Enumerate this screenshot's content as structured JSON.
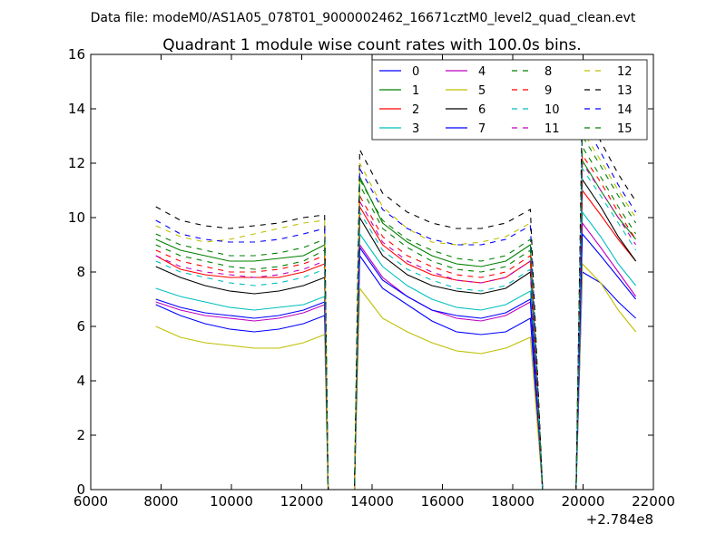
{
  "chart_data": {
    "type": "line",
    "suptitle": "Data file: modeM0/AS1A05_078T01_9000002462_16671cztM0_level2_quad_clean.evt",
    "title": "Quadrant 1 module wise count rates with 100.0s bins.",
    "xlabel": "",
    "ylabel": "",
    "x_offset_label": "+2.784e8",
    "xlim": [
      6000,
      22000
    ],
    "ylim": [
      0,
      16
    ],
    "xticks": [
      6000,
      8000,
      10000,
      12000,
      14000,
      16000,
      18000,
      20000,
      22000
    ],
    "yticks": [
      0,
      2,
      4,
      6,
      8,
      10,
      12,
      14,
      16
    ],
    "grid": false,
    "legend_position": "top-right",
    "x": [
      7850,
      8550,
      9250,
      9950,
      10650,
      11350,
      12050,
      12650,
      12750,
      13500,
      13650,
      14300,
      15000,
      15700,
      16400,
      17100,
      17800,
      18500,
      18850,
      18950,
      19800,
      19980,
      20500,
      21000,
      21500
    ],
    "series": [
      {
        "name": "0",
        "color": "#0000ff",
        "dash": "solid",
        "values": [
          6.8,
          6.4,
          6.1,
          5.9,
          5.8,
          5.9,
          6.1,
          6.4,
          0,
          0,
          8.6,
          7.4,
          6.8,
          6.2,
          5.8,
          5.7,
          5.8,
          6.3,
          0,
          0,
          0,
          8.0,
          7.6,
          6.9,
          6.3
        ]
      },
      {
        "name": "1",
        "color": "#008000",
        "dash": "solid",
        "values": [
          9.2,
          8.8,
          8.6,
          8.4,
          8.4,
          8.5,
          8.6,
          9.0,
          0,
          0,
          11.5,
          9.8,
          9.1,
          8.6,
          8.3,
          8.2,
          8.4,
          9.0,
          0,
          0,
          0,
          12.1,
          11.0,
          10.0,
          9.2
        ]
      },
      {
        "name": "2",
        "color": "#ff0000",
        "dash": "solid",
        "values": [
          8.6,
          8.1,
          7.9,
          7.8,
          7.8,
          7.8,
          8.0,
          8.3,
          0,
          0,
          10.4,
          9.0,
          8.3,
          7.9,
          7.7,
          7.6,
          7.8,
          8.4,
          0,
          0,
          0,
          11.0,
          10.1,
          9.2,
          8.4
        ]
      },
      {
        "name": "3",
        "color": "#00bfbf",
        "dash": "solid",
        "values": [
          7.4,
          7.1,
          6.9,
          6.7,
          6.6,
          6.7,
          6.8,
          7.1,
          0,
          0,
          9.4,
          8.2,
          7.5,
          7.0,
          6.7,
          6.6,
          6.8,
          7.3,
          0,
          0,
          0,
          10.2,
          9.3,
          8.3,
          7.5
        ]
      },
      {
        "name": "4",
        "color": "#bf00bf",
        "dash": "solid",
        "values": [
          6.9,
          6.6,
          6.4,
          6.3,
          6.2,
          6.3,
          6.5,
          6.8,
          0,
          0,
          9.0,
          7.8,
          7.1,
          6.6,
          6.3,
          6.2,
          6.4,
          6.9,
          0,
          0,
          0,
          9.8,
          8.9,
          8.0,
          7.1
        ]
      },
      {
        "name": "5",
        "color": "#bfbf00",
        "dash": "solid",
        "values": [
          6.0,
          5.6,
          5.4,
          5.3,
          5.2,
          5.2,
          5.4,
          5.7,
          0,
          0,
          7.4,
          6.3,
          5.8,
          5.4,
          5.1,
          5.0,
          5.2,
          5.6,
          0,
          0,
          0,
          8.3,
          7.6,
          6.6,
          5.8
        ]
      },
      {
        "name": "6",
        "color": "#000000",
        "dash": "solid",
        "values": [
          8.2,
          7.8,
          7.5,
          7.3,
          7.2,
          7.3,
          7.5,
          7.8,
          0,
          0,
          10.0,
          8.6,
          7.9,
          7.5,
          7.3,
          7.2,
          7.4,
          8.0,
          0,
          0,
          0,
          11.4,
          10.4,
          9.3,
          8.4
        ]
      },
      {
        "name": "7",
        "color": "#0000ff",
        "dash": "solid",
        "values": [
          7.0,
          6.7,
          6.5,
          6.4,
          6.3,
          6.4,
          6.6,
          6.9,
          0,
          0,
          8.9,
          7.7,
          7.1,
          6.6,
          6.4,
          6.3,
          6.5,
          7.0,
          0,
          0,
          0,
          9.4,
          8.6,
          7.8,
          7.0
        ]
      },
      {
        "name": "8",
        "color": "#008000",
        "dash": "dashed",
        "values": [
          9.0,
          8.6,
          8.4,
          8.2,
          8.1,
          8.2,
          8.4,
          8.8,
          0,
          0,
          11.2,
          9.6,
          8.9,
          8.4,
          8.1,
          8.0,
          8.2,
          8.8,
          0,
          0,
          0,
          12.6,
          11.5,
          10.4,
          9.4
        ]
      },
      {
        "name": "9",
        "color": "#ff0000",
        "dash": "dashed",
        "values": [
          8.8,
          8.4,
          8.2,
          8.0,
          8.0,
          8.1,
          8.3,
          8.6,
          0,
          0,
          10.8,
          9.3,
          8.6,
          8.2,
          7.9,
          7.8,
          8.0,
          8.6,
          0,
          0,
          0,
          12.3,
          11.3,
          10.2,
          9.2
        ]
      },
      {
        "name": "10",
        "color": "#00bfbf",
        "dash": "dashed",
        "values": [
          8.4,
          8.0,
          7.8,
          7.6,
          7.5,
          7.6,
          7.8,
          8.1,
          0,
          0,
          10.2,
          8.8,
          8.1,
          7.7,
          7.4,
          7.3,
          7.5,
          8.1,
          0,
          0,
          0,
          11.8,
          10.8,
          9.8,
          8.8
        ]
      },
      {
        "name": "11",
        "color": "#bf00bf",
        "dash": "dashed",
        "values": [
          8.6,
          8.2,
          8.0,
          7.9,
          7.8,
          7.9,
          8.1,
          8.4,
          0,
          0,
          10.6,
          9.1,
          8.4,
          8.0,
          7.7,
          7.6,
          7.8,
          8.4,
          0,
          0,
          0,
          12.0,
          11.0,
          10.0,
          9.0
        ]
      },
      {
        "name": "12",
        "color": "#bfbf00",
        "dash": "dashed",
        "values": [
          9.7,
          9.3,
          9.1,
          9.2,
          9.4,
          9.6,
          9.8,
          9.9,
          0,
          0,
          12.0,
          10.4,
          9.6,
          9.1,
          9.0,
          9.1,
          9.3,
          9.8,
          0,
          0,
          0,
          13.2,
          12.1,
          11.0,
          10.0
        ]
      },
      {
        "name": "13",
        "color": "#000000",
        "dash": "dashed",
        "values": [
          10.4,
          9.9,
          9.7,
          9.6,
          9.7,
          9.8,
          10.0,
          10.1,
          0,
          0,
          12.5,
          10.9,
          10.2,
          9.8,
          9.6,
          9.6,
          9.8,
          10.3,
          0,
          0,
          0,
          14.4,
          12.8,
          11.6,
          10.6
        ]
      },
      {
        "name": "14",
        "color": "#0000ff",
        "dash": "dashed",
        "values": [
          9.9,
          9.4,
          9.2,
          9.1,
          9.1,
          9.2,
          9.4,
          9.6,
          0,
          0,
          11.8,
          10.3,
          9.6,
          9.2,
          9.0,
          9.0,
          9.2,
          9.7,
          0,
          0,
          0,
          13.6,
          12.4,
          11.2,
          10.2
        ]
      },
      {
        "name": "15",
        "color": "#008000",
        "dash": "dashed",
        "values": [
          9.4,
          9.0,
          8.8,
          8.6,
          8.6,
          8.7,
          8.9,
          9.2,
          0,
          0,
          11.4,
          9.9,
          9.2,
          8.8,
          8.5,
          8.4,
          8.6,
          9.2,
          0,
          0,
          0,
          13.0,
          11.9,
          10.8,
          9.8
        ]
      }
    ]
  }
}
